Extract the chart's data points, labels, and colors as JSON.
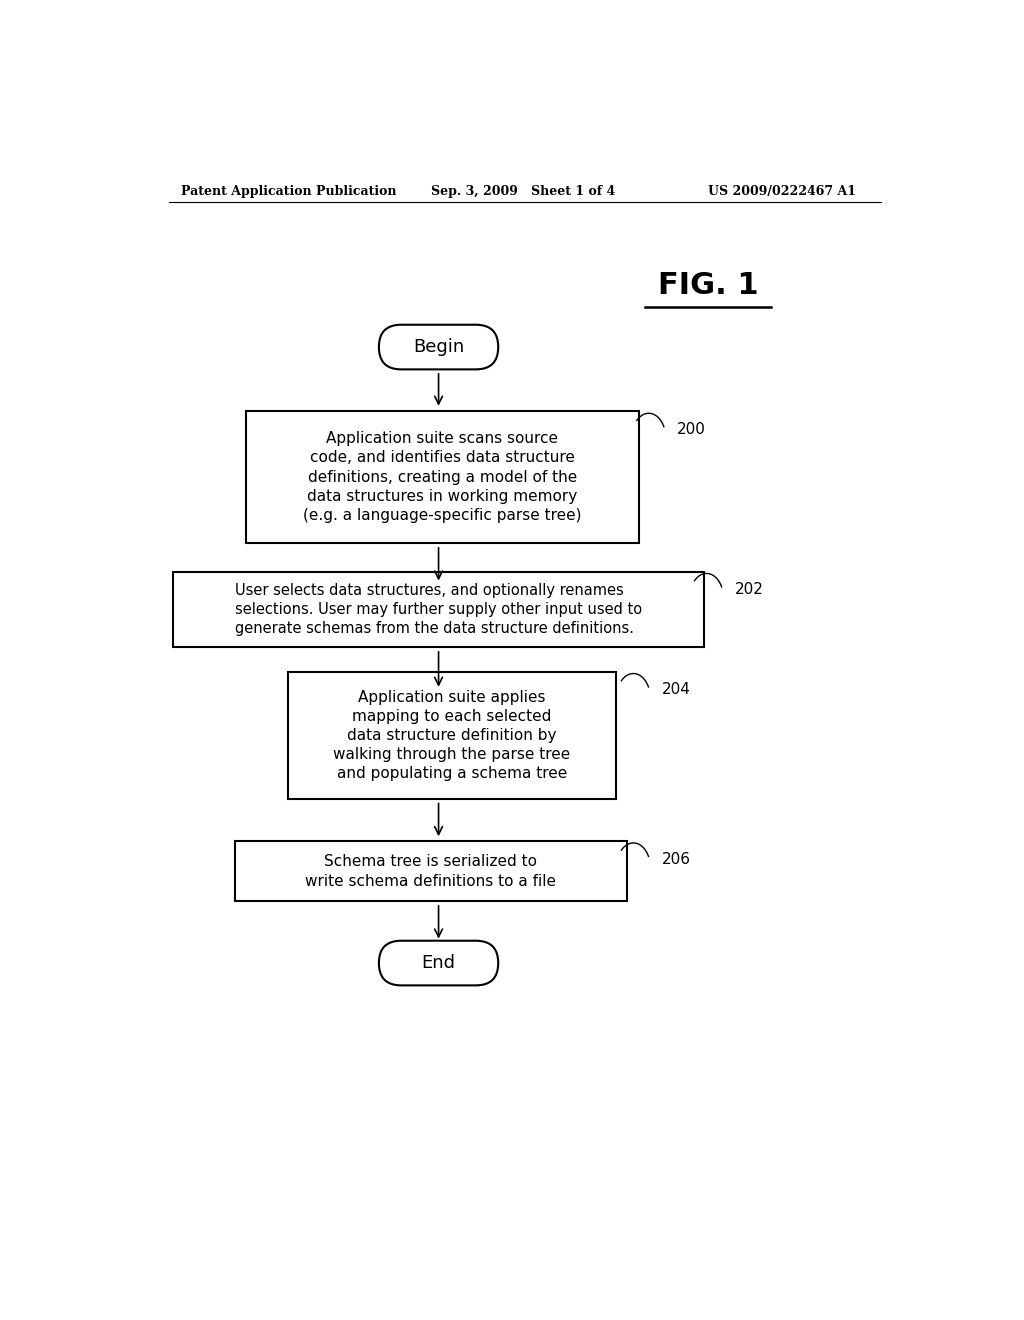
{
  "header_left": "Patent Application Publication",
  "header_mid": "Sep. 3, 2009   Sheet 1 of 4",
  "header_right": "US 2009/0222467 A1",
  "fig_title": "FIG. 1",
  "begin_label": "Begin",
  "end_label": "End",
  "box200_text": "Application suite scans source\ncode, and identifies data structure\ndefinitions, creating a model of the\ndata structures in working memory\n(e.g. a language-specific parse tree)",
  "box200_label": "200",
  "box202_text": "User selects data structures, and optionally renames\nselections. User may further supply other input used to\ngenerate schemas from the data structure definitions.",
  "box202_label": "202",
  "box204_text": "Application suite applies\nmapping to each selected\ndata structure definition by\nwalking through the parse tree\nand populating a schema tree",
  "box204_label": "204",
  "box206_text": "Schema tree is serialized to\nwrite schema definitions to a file",
  "box206_label": "206",
  "bg_color": "#ffffff",
  "text_color": "#000000",
  "box_edge_color": "#000000",
  "arrow_color": "#000000"
}
